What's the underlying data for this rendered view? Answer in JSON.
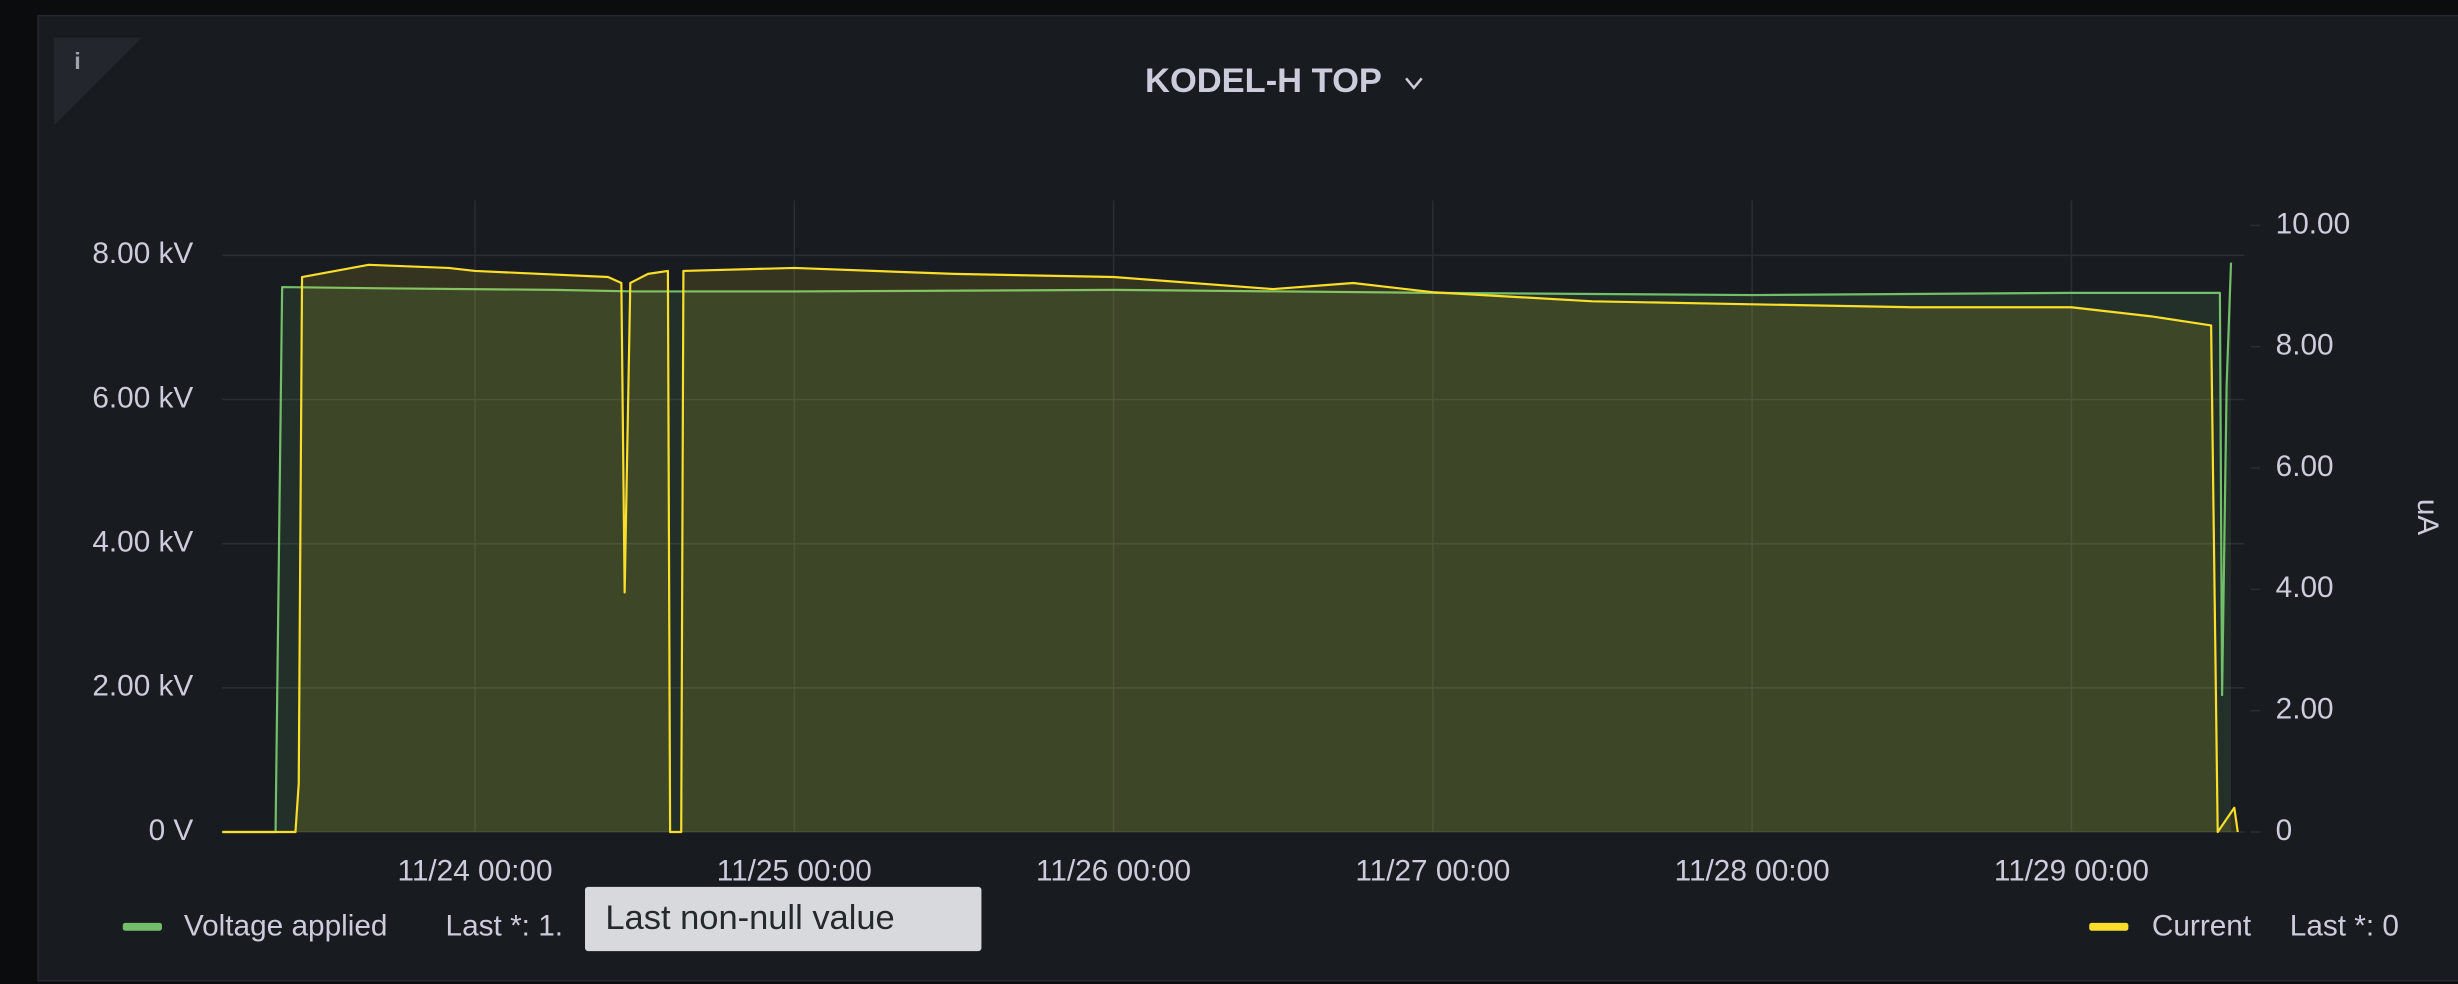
{
  "chart_data": {
    "type": "line",
    "title": "KODEL-H TOP",
    "info": "i",
    "y2label": "uA",
    "tooltip": "Last non-null value",
    "grid": true,
    "fill": true,
    "xlim": [
      "11/23 05:00",
      "11/29 13:00"
    ],
    "xticks": [
      "11/24 00:00",
      "11/25 00:00",
      "11/26 00:00",
      "11/27 00:00",
      "11/28 00:00",
      "11/29 00:00"
    ],
    "ylim": [
      0,
      8760
    ],
    "yticks": [
      {
        "value": 0,
        "label": "0 V"
      },
      {
        "value": 2000,
        "label": "2.00 kV"
      },
      {
        "value": 4000,
        "label": "4.00 kV"
      },
      {
        "value": 6000,
        "label": "6.00 kV"
      },
      {
        "value": 8000,
        "label": "8.00 kV"
      }
    ],
    "y2lim": [
      0,
      10.41
    ],
    "y2ticks": [
      0,
      {
        "value": 2,
        "label": "2.00"
      },
      {
        "value": 4,
        "label": "4.00"
      },
      {
        "value": 6,
        "label": "6.00"
      },
      {
        "value": 8,
        "label": "8.00"
      },
      {
        "value": 10,
        "label": "10.00"
      }
    ],
    "series": [
      {
        "name": "Voltage applied",
        "color": "#73bf69",
        "legend_value": "Last *: 1.",
        "x": [
          "11/23 05:00",
          "11/23 09:00",
          "11/23 09:30",
          "11/23 18:00",
          "11/24 06:00",
          "11/24 12:00",
          "11/25 00:00",
          "11/26 00:00",
          "11/27 00:00",
          "11/28 00:00",
          "11/29 00:00",
          "11/29 11:10",
          "11/29 11:20",
          "11/29 11:40",
          "11/29 12:00"
        ],
        "values": [
          0,
          0,
          7560,
          7540,
          7520,
          7500,
          7500,
          7520,
          7480,
          7450,
          7480,
          7480,
          1900,
          6200,
          7900
        ]
      },
      {
        "name": "Current",
        "color": "#fade2a",
        "axis": "y2",
        "legend_value": "Last *: 0",
        "x": [
          "11/23 05:00",
          "11/23 10:30",
          "11/23 10:45",
          "11/23 11:00",
          "11/23 16:00",
          "11/23 22:00",
          "11/24 00:00",
          "11/24 10:00",
          "11/24 11:00",
          "11/24 11:15",
          "11/24 11:40",
          "11/24 13:00",
          "11/24 14:30",
          "11/24 14:40",
          "11/24 15:30",
          "11/24 15:40",
          "11/25 00:00",
          "11/25 12:00",
          "11/26 00:00",
          "11/26 12:00",
          "11/26 18:00",
          "11/27 00:00",
          "11/27 12:00",
          "11/28 00:00",
          "11/28 12:00",
          "11/29 00:00",
          "11/29 06:00",
          "11/29 10:30",
          "11/29 11:00",
          "11/29 12:15",
          "11/29 12:30"
        ],
        "values": [
          0,
          0,
          0.8,
          9.15,
          9.35,
          9.3,
          9.25,
          9.15,
          9.05,
          3.95,
          9.05,
          9.2,
          9.25,
          0,
          0,
          9.25,
          9.3,
          9.2,
          9.15,
          8.95,
          9.05,
          8.9,
          8.75,
          8.7,
          8.65,
          8.65,
          8.5,
          8.35,
          0,
          0.4,
          0
        ]
      }
    ]
  }
}
